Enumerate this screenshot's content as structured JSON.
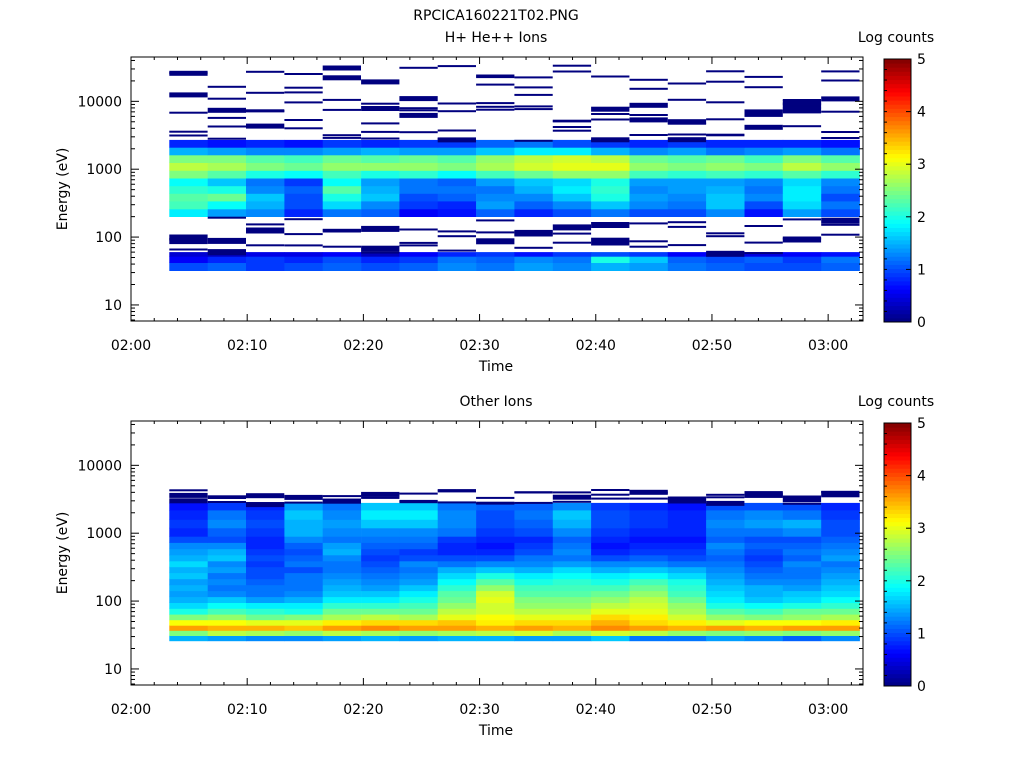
{
  "figure": {
    "title": "RPCICA160221T02.PNG"
  },
  "colorscale": {
    "stops": [
      "#00007f",
      "#0000ff",
      "#007fff",
      "#00ffff",
      "#7fff7f",
      "#ffff00",
      "#ff7f00",
      "#ff0000",
      "#7f0000"
    ]
  },
  "chart_data": [
    {
      "type": "heatmap",
      "title": "H+ He++ Ions",
      "xlabel": "Time",
      "ylabel": "Energy (eV)",
      "x_ticks": [
        "02:00",
        "02:10",
        "02:20",
        "02:30",
        "02:40",
        "02:50",
        "03:00"
      ],
      "x_range_minutes": [
        0,
        63
      ],
      "y_ticks": [
        "10",
        "100",
        "1000",
        "10000"
      ],
      "y_scale": "log",
      "y_range_eV": [
        5.8,
        45000
      ],
      "colorbar": {
        "label": "Log counts",
        "ticks": [
          "0",
          "1",
          "2",
          "3",
          "4",
          "5"
        ],
        "range": [
          0,
          5
        ]
      },
      "time_bins_start_minutes": [
        3.3,
        6.6,
        9.9,
        13.2,
        16.5,
        19.8,
        23.1,
        26.4,
        29.7,
        33.0,
        36.3,
        39.6,
        42.9,
        46.2,
        49.5,
        52.8,
        56.1,
        59.4
      ],
      "time_bin_width_minutes": 3.3,
      "bands": [
        {
          "e_low_eV": 32,
          "e_high_eV": 42,
          "values": [
            1.0,
            1.1,
            0.9,
            1.0,
            1.1,
            1.0,
            1.1,
            1.3,
            1.2,
            1.4,
            1.3,
            1.5,
            1.4,
            1.2,
            1.1,
            1.0,
            1.0,
            1.1
          ]
        },
        {
          "e_low_eV": 42,
          "e_high_eV": 52,
          "values": [
            0.6,
            0.8,
            0.9,
            0.8,
            1.0,
            0.8,
            0.9,
            1.2,
            1.1,
            1.3,
            1.2,
            2.0,
            1.6,
            1.1,
            1.0,
            1.1,
            0.9,
            1.2
          ]
        },
        {
          "e_low_eV": 52,
          "e_high_eV": 60,
          "values": [
            0.4,
            0.3,
            0.5,
            0.5,
            0.6,
            0.3,
            0.6,
            0.8,
            0.9,
            0.7,
            0.9,
            1.0,
            0.9,
            0.6,
            0.7,
            0.5,
            0.6,
            0.7
          ]
        },
        {
          "e_low_eV": 200,
          "e_high_eV": 260,
          "values": [
            1.8,
            1.4,
            1.3,
            0.8,
            1.2,
            1.1,
            0.6,
            0.7,
            1.1,
            0.8,
            1.0,
            1.2,
            1.0,
            1.0,
            1.3,
            0.7,
            1.4,
            1.0
          ]
        },
        {
          "e_low_eV": 260,
          "e_high_eV": 340,
          "values": [
            2.2,
            1.9,
            1.5,
            1.0,
            1.7,
            1.3,
            0.9,
            0.8,
            1.4,
            1.1,
            1.3,
            1.6,
            1.3,
            1.2,
            1.6,
            1.0,
            1.7,
            1.2
          ]
        },
        {
          "e_low_eV": 340,
          "e_high_eV": 440,
          "values": [
            2.3,
            2.4,
            1.6,
            1.0,
            2.0,
            1.6,
            1.0,
            1.1,
            1.3,
            1.3,
            1.6,
            2.0,
            1.4,
            1.3,
            1.6,
            1.3,
            1.8,
            1.0
          ]
        },
        {
          "e_low_eV": 440,
          "e_high_eV": 570,
          "values": [
            2.1,
            2.0,
            1.3,
            1.1,
            2.3,
            1.5,
            1.2,
            1.2,
            1.2,
            1.5,
            1.8,
            2.1,
            1.3,
            1.4,
            1.5,
            1.2,
            1.8,
            1.2
          ]
        },
        {
          "e_low_eV": 570,
          "e_high_eV": 740,
          "values": [
            1.9,
            1.6,
            1.2,
            0.9,
            1.9,
            1.4,
            1.2,
            1.1,
            1.4,
            1.6,
            1.7,
            2.0,
            1.4,
            1.4,
            1.4,
            1.3,
            1.7,
            1.3
          ]
        },
        {
          "e_low_eV": 740,
          "e_high_eV": 960,
          "values": [
            2.5,
            2.3,
            2.0,
            1.9,
            2.2,
            2.0,
            2.1,
            1.9,
            2.2,
            2.4,
            2.6,
            2.6,
            2.2,
            2.1,
            2.2,
            2.1,
            2.3,
            2.1
          ]
        },
        {
          "e_low_eV": 960,
          "e_high_eV": 1250,
          "values": [
            2.8,
            2.7,
            2.5,
            2.4,
            2.6,
            2.6,
            2.6,
            2.5,
            2.7,
            2.9,
            3.0,
            3.0,
            2.6,
            2.5,
            2.6,
            2.5,
            2.8,
            2.6
          ]
        },
        {
          "e_low_eV": 1250,
          "e_high_eV": 1620,
          "values": [
            2.5,
            2.5,
            2.3,
            2.2,
            2.4,
            2.3,
            2.4,
            2.3,
            2.6,
            2.8,
            2.9,
            2.8,
            2.4,
            2.3,
            2.4,
            2.2,
            2.5,
            2.3
          ]
        },
        {
          "e_low_eV": 1620,
          "e_high_eV": 2100,
          "values": [
            1.5,
            1.4,
            1.3,
            1.3,
            1.4,
            1.5,
            1.4,
            1.4,
            1.6,
            1.8,
            1.8,
            1.5,
            1.3,
            1.4,
            1.2,
            1.3,
            1.4,
            1.2
          ]
        },
        {
          "e_low_eV": 2100,
          "e_high_eV": 2700,
          "values": [
            0.8,
            0.7,
            0.8,
            0.7,
            0.9,
            0.8,
            0.9,
            0.9,
            1.1,
            1.2,
            1.0,
            0.9,
            0.8,
            0.9,
            0.8,
            0.8,
            0.8,
            0.7
          ]
        }
      ]
    },
    {
      "type": "heatmap",
      "title": "Other Ions",
      "xlabel": "Time",
      "ylabel": "Energy (eV)",
      "x_ticks": [
        "02:00",
        "02:10",
        "02:20",
        "02:30",
        "02:40",
        "02:50",
        "03:00"
      ],
      "x_range_minutes": [
        0,
        63
      ],
      "y_ticks": [
        "10",
        "100",
        "1000",
        "10000"
      ],
      "y_scale": "log",
      "y_range_eV": [
        5.8,
        45000
      ],
      "colorbar": {
        "label": "Log counts",
        "ticks": [
          "0",
          "1",
          "2",
          "3",
          "4",
          "5"
        ],
        "range": [
          0,
          5
        ]
      },
      "time_bins_start_minutes": [
        3.3,
        6.6,
        9.9,
        13.2,
        16.5,
        19.8,
        23.1,
        26.4,
        29.7,
        33.0,
        36.3,
        39.6,
        42.9,
        46.2,
        49.5,
        52.8,
        56.1,
        59.4
      ],
      "time_bin_width_minutes": 3.3,
      "bands": [
        {
          "e_low_eV": 26,
          "e_high_eV": 31,
          "values": [
            1.5,
            1.4,
            1.3,
            1.3,
            1.4,
            1.5,
            1.4,
            1.5,
            1.5,
            1.4,
            1.4,
            1.6,
            1.2,
            1.2,
            1.4,
            1.3,
            1.1,
            1.3
          ]
        },
        {
          "e_low_eV": 31,
          "e_high_eV": 37,
          "values": [
            2.5,
            2.8,
            2.7,
            2.6,
            2.8,
            2.7,
            2.6,
            2.7,
            2.8,
            2.9,
            2.7,
            2.9,
            2.8,
            2.6,
            2.5,
            2.6,
            2.5,
            2.6
          ]
        },
        {
          "e_low_eV": 37,
          "e_high_eV": 44,
          "values": [
            3.6,
            3.5,
            3.5,
            3.4,
            3.6,
            3.7,
            3.6,
            3.6,
            3.5,
            3.6,
            3.5,
            3.7,
            3.6,
            3.5,
            3.6,
            3.5,
            3.6,
            3.6
          ]
        },
        {
          "e_low_eV": 44,
          "e_high_eV": 53,
          "values": [
            3.1,
            3.1,
            3.0,
            3.0,
            3.2,
            3.3,
            3.3,
            3.4,
            3.2,
            3.3,
            3.3,
            3.5,
            3.3,
            3.2,
            3.0,
            3.1,
            3.1,
            3.2
          ]
        },
        {
          "e_low_eV": 53,
          "e_high_eV": 64,
          "values": [
            2.5,
            2.6,
            2.4,
            2.5,
            2.7,
            2.8,
            2.7,
            3.0,
            3.1,
            3.0,
            3.0,
            3.3,
            3.2,
            2.9,
            2.6,
            2.5,
            2.6,
            2.7
          ]
        },
        {
          "e_low_eV": 64,
          "e_high_eV": 78,
          "values": [
            2.0,
            2.2,
            2.1,
            2.0,
            2.4,
            2.4,
            2.4,
            2.8,
            2.9,
            2.8,
            2.8,
            3.0,
            3.0,
            2.7,
            2.3,
            2.2,
            2.4,
            2.4
          ]
        },
        {
          "e_low_eV": 78,
          "e_high_eV": 95,
          "values": [
            1.7,
            1.9,
            1.8,
            1.8,
            2.1,
            2.1,
            2.2,
            2.6,
            2.9,
            2.6,
            2.6,
            2.8,
            2.9,
            2.6,
            2.0,
            1.9,
            2.0,
            2.1
          ]
        },
        {
          "e_low_eV": 95,
          "e_high_eV": 116,
          "values": [
            1.5,
            1.6,
            1.4,
            1.5,
            1.8,
            1.8,
            2.0,
            2.4,
            3.0,
            2.5,
            2.5,
            2.6,
            2.8,
            2.4,
            1.8,
            1.6,
            1.7,
            1.9
          ]
        },
        {
          "e_low_eV": 116,
          "e_high_eV": 142,
          "values": [
            1.4,
            1.3,
            1.2,
            1.3,
            1.6,
            1.6,
            1.8,
            2.3,
            2.9,
            2.3,
            2.3,
            2.4,
            2.6,
            2.2,
            1.7,
            1.5,
            1.6,
            1.7
          ]
        },
        {
          "e_low_eV": 142,
          "e_high_eV": 174,
          "values": [
            1.5,
            1.2,
            1.2,
            1.2,
            1.5,
            1.4,
            1.6,
            2.1,
            2.6,
            2.2,
            2.2,
            2.2,
            2.4,
            2.1,
            1.6,
            1.5,
            1.4,
            1.6
          ]
        },
        {
          "e_low_eV": 174,
          "e_high_eV": 213,
          "values": [
            1.4,
            1.3,
            1.1,
            1.2,
            1.4,
            1.3,
            1.4,
            1.9,
            2.3,
            2.0,
            2.1,
            2.0,
            2.2,
            2.0,
            1.5,
            1.3,
            1.3,
            1.5
          ]
        },
        {
          "e_low_eV": 213,
          "e_high_eV": 262,
          "values": [
            1.6,
            1.2,
            1.0,
            1.2,
            1.3,
            1.2,
            1.3,
            1.7,
            2.0,
            1.8,
            1.9,
            1.8,
            1.9,
            1.7,
            1.4,
            1.2,
            1.2,
            1.4
          ]
        },
        {
          "e_low_eV": 262,
          "e_high_eV": 320,
          "values": [
            1.5,
            1.4,
            1.0,
            1.0,
            1.2,
            1.1,
            1.2,
            1.5,
            1.6,
            1.5,
            1.7,
            1.5,
            1.6,
            1.5,
            1.3,
            1.1,
            1.2,
            1.3
          ]
        },
        {
          "e_low_eV": 320,
          "e_high_eV": 390,
          "values": [
            1.7,
            1.3,
            0.9,
            1.2,
            1.2,
            1.0,
            1.3,
            1.2,
            1.3,
            1.3,
            1.4,
            1.3,
            1.3,
            1.2,
            1.2,
            1.0,
            1.3,
            1.2
          ]
        },
        {
          "e_low_eV": 390,
          "e_high_eV": 480,
          "values": [
            1.5,
            1.6,
            1.0,
            1.1,
            1.3,
            0.9,
            1.0,
            1.0,
            1.0,
            1.2,
            1.2,
            1.0,
            1.1,
            1.0,
            1.1,
            0.9,
            1.1,
            1.4
          ]
        },
        {
          "e_low_eV": 480,
          "e_high_eV": 590,
          "values": [
            1.4,
            1.5,
            0.9,
            1.0,
            1.5,
            1.0,
            0.9,
            0.8,
            0.8,
            1.0,
            1.3,
            0.8,
            0.9,
            0.9,
            1.2,
            1.0,
            1.2,
            1.3
          ]
        },
        {
          "e_low_eV": 590,
          "e_high_eV": 730,
          "values": [
            1.3,
            1.3,
            0.8,
            1.1,
            1.4,
            1.1,
            1.1,
            0.8,
            0.7,
            0.9,
            1.2,
            0.7,
            0.8,
            0.8,
            1.3,
            1.1,
            1.1,
            1.2
          ]
        },
        {
          "e_low_eV": 730,
          "e_high_eV": 900,
          "values": [
            1.0,
            1.0,
            0.8,
            1.3,
            1.2,
            1.2,
            1.2,
            0.9,
            0.8,
            0.8,
            1.1,
            0.8,
            0.7,
            0.7,
            1.1,
            1.0,
            1.0,
            1.1
          ]
        },
        {
          "e_low_eV": 900,
          "e_high_eV": 1200,
          "values": [
            0.8,
            1.1,
            0.9,
            1.5,
            1.3,
            1.3,
            1.3,
            1.2,
            0.9,
            1.0,
            1.3,
            0.9,
            0.8,
            0.8,
            1.2,
            1.2,
            1.3,
            1.0
          ]
        },
        {
          "e_low_eV": 1200,
          "e_high_eV": 1600,
          "values": [
            0.9,
            1.3,
            1.0,
            1.5,
            1.4,
            1.6,
            1.6,
            1.3,
            1.0,
            1.1,
            1.5,
            1.0,
            0.9,
            0.8,
            1.3,
            1.4,
            1.5,
            1.0
          ]
        },
        {
          "e_low_eV": 1600,
          "e_high_eV": 2200,
          "values": [
            0.8,
            1.2,
            0.9,
            1.6,
            1.3,
            1.8,
            1.8,
            1.3,
            1.0,
            1.2,
            1.6,
            1.0,
            0.9,
            0.8,
            1.2,
            1.3,
            1.2,
            0.9
          ]
        },
        {
          "e_low_eV": 2200,
          "e_high_eV": 2800,
          "values": [
            0.7,
            0.9,
            0.8,
            1.4,
            1.2,
            1.6,
            1.6,
            1.2,
            1.1,
            1.1,
            1.3,
            0.9,
            0.8,
            0.7,
            1.0,
            1.0,
            1.0,
            0.8
          ]
        }
      ]
    }
  ]
}
